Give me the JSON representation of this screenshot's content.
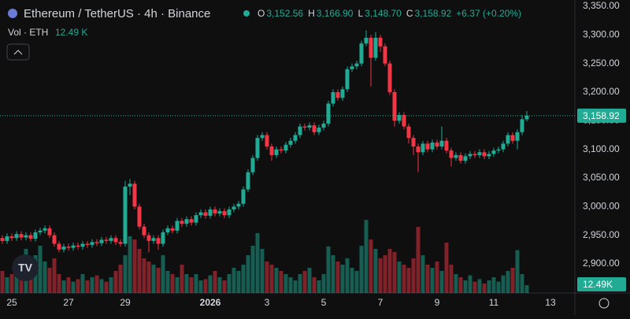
{
  "chart_data": {
    "type": "candlestick",
    "header": {
      "symbol": "Ethereum / TetherUS · 4h · Binance",
      "fields": [
        {
          "key": "O",
          "text": "3,152.56"
        },
        {
          "key": "H",
          "text": "3,166.90"
        },
        {
          "key": "L",
          "text": "3,148.70"
        },
        {
          "key": "C",
          "text": "3,158.92"
        }
      ],
      "change": "+6.37 (+0.20%)",
      "volume_title": "Vol · ETH",
      "volume_text": "12.49 K"
    },
    "last_price_label": "3,158.92",
    "last_volume_label": "12.49K",
    "up_color": "#22ab94",
    "down_color": "#f23645",
    "open": [
      2945,
      2940,
      2948,
      2945,
      2952,
      2946,
      2950,
      2944,
      2955,
      2958,
      2962,
      2950,
      2935,
      2925,
      2930,
      2928,
      2932,
      2930,
      2935,
      2933,
      2938,
      2936,
      2942,
      2940,
      2945,
      2938,
      2935,
      3035,
      3040,
      3000,
      2965,
      2950,
      2940,
      2945,
      2935,
      2955,
      2962,
      2958,
      2975,
      2970,
      2978,
      2972,
      2985,
      2990,
      2984,
      2995,
      2988,
      2992,
      2985,
      2995,
      3000,
      3005,
      3030,
      3060,
      3085,
      3120,
      3125,
      3105,
      3090,
      3100,
      3098,
      3108,
      3115,
      3125,
      3140,
      3138,
      3142,
      3130,
      3138,
      3145,
      3180,
      3200,
      3190,
      3205,
      3240,
      3245,
      3250,
      3285,
      3295,
      3260,
      3295,
      3280,
      3250,
      3200,
      3150,
      3160,
      3140,
      3120,
      3105,
      3095,
      3110,
      3100,
      3112,
      3105,
      3115,
      3098,
      3085,
      3090,
      3080,
      3088,
      3092,
      3090,
      3095,
      3088,
      3092,
      3098,
      3100,
      3110,
      3125,
      3115,
      3130,
      3152.56
    ],
    "high": [
      2950,
      2953,
      2953,
      2957,
      2957,
      2955,
      2955,
      2960,
      2963,
      2967,
      2967,
      2955,
      2940,
      2935,
      2935,
      2937,
      2937,
      2940,
      2940,
      2943,
      2943,
      2947,
      2947,
      2950,
      2950,
      2943,
      3045,
      3048,
      3045,
      3005,
      2970,
      2955,
      2950,
      2950,
      2960,
      2967,
      2967,
      2980,
      2980,
      2983,
      2983,
      2990,
      2995,
      2995,
      3000,
      3000,
      2997,
      2997,
      3000,
      3005,
      3010,
      3035,
      3065,
      3090,
      3125,
      3130,
      3130,
      3110,
      3105,
      3105,
      3113,
      3120,
      3130,
      3145,
      3145,
      3147,
      3147,
      3143,
      3150,
      3185,
      3205,
      3205,
      3210,
      3245,
      3250,
      3255,
      3290,
      3308,
      3300,
      3305,
      3300,
      3285,
      3255,
      3205,
      3165,
      3165,
      3145,
      3125,
      3110,
      3115,
      3115,
      3117,
      3117,
      3140,
      3120,
      3103,
      3095,
      3095,
      3093,
      3097,
      3097,
      3100,
      3100,
      3097,
      3103,
      3105,
      3115,
      3130,
      3130,
      3135,
      3160,
      3166.9
    ],
    "low": [
      2935,
      2935,
      2940,
      2940,
      2941,
      2941,
      2939,
      2939,
      2950,
      2953,
      2945,
      2930,
      2920,
      2920,
      2923,
      2923,
      2925,
      2925,
      2928,
      2928,
      2931,
      2931,
      2935,
      2935,
      2933,
      2930,
      2930,
      3020,
      2995,
      2960,
      2945,
      2920,
      2935,
      2925,
      2930,
      2950,
      2953,
      2953,
      2965,
      2965,
      2967,
      2967,
      2980,
      2979,
      2979,
      2983,
      2983,
      2980,
      2980,
      2990,
      2995,
      3000,
      3025,
      3055,
      3080,
      3115,
      3100,
      3080,
      3085,
      3093,
      3093,
      3103,
      3110,
      3120,
      3133,
      3133,
      3125,
      3125,
      3133,
      3140,
      3175,
      3185,
      3185,
      3200,
      3235,
      3240,
      3245,
      3280,
      3210,
      3255,
      3270,
      3245,
      3195,
      3140,
      3145,
      3135,
      3110,
      3090,
      3060,
      3090,
      3095,
      3095,
      3100,
      3100,
      3093,
      3070,
      3080,
      3075,
      3075,
      3083,
      3085,
      3085,
      3083,
      3083,
      3087,
      3093,
      3095,
      3105,
      3110,
      3100,
      3125,
      3148.7
    ],
    "close": [
      2940,
      2948,
      2945,
      2952,
      2946,
      2950,
      2944,
      2955,
      2958,
      2962,
      2950,
      2935,
      2925,
      2930,
      2928,
      2932,
      2930,
      2935,
      2933,
      2938,
      2936,
      2942,
      2940,
      2945,
      2938,
      2935,
      3035,
      3040,
      3000,
      2965,
      2950,
      2940,
      2945,
      2935,
      2955,
      2962,
      2958,
      2975,
      2970,
      2978,
      2972,
      2985,
      2990,
      2984,
      2995,
      2988,
      2992,
      2985,
      2995,
      3000,
      3005,
      3030,
      3060,
      3085,
      3120,
      3125,
      3105,
      3090,
      3100,
      3098,
      3108,
      3115,
      3125,
      3140,
      3138,
      3142,
      3130,
      3138,
      3145,
      3180,
      3200,
      3190,
      3205,
      3240,
      3245,
      3250,
      3285,
      3295,
      3260,
      3295,
      3280,
      3250,
      3200,
      3150,
      3160,
      3140,
      3120,
      3105,
      3095,
      3110,
      3100,
      3112,
      3105,
      3115,
      3098,
      3085,
      3090,
      3080,
      3088,
      3092,
      3090,
      3095,
      3088,
      3092,
      3098,
      3100,
      3110,
      3125,
      3115,
      3130,
      3152.56,
      3158.92
    ],
    "volume": [
      35,
      25,
      30,
      40,
      55,
      70,
      45,
      60,
      75,
      50,
      40,
      55,
      30,
      20,
      25,
      18,
      22,
      30,
      20,
      25,
      28,
      22,
      18,
      25,
      35,
      45,
      60,
      90,
      85,
      70,
      55,
      50,
      45,
      40,
      60,
      35,
      30,
      25,
      45,
      30,
      25,
      30,
      20,
      22,
      28,
      35,
      25,
      20,
      30,
      40,
      35,
      45,
      60,
      75,
      95,
      70,
      50,
      45,
      40,
      35,
      30,
      25,
      20,
      30,
      35,
      40,
      25,
      20,
      30,
      74,
      60,
      50,
      45,
      55,
      40,
      35,
      75,
      116,
      85,
      70,
      55,
      60,
      70,
      65,
      50,
      45,
      40,
      55,
      105,
      60,
      45,
      40,
      50,
      35,
      80,
      45,
      30,
      25,
      20,
      28,
      18,
      22,
      15,
      20,
      25,
      18,
      28,
      35,
      40,
      68,
      30,
      12.49
    ],
    "xlim": [
      -0.5,
      121.17
    ],
    "ylim": [
      2849,
      3361
    ],
    "vlim": [
      0,
      465
    ],
    "yticks": [
      {
        "value": 2900,
        "label": "2,900.00"
      },
      {
        "value": 2950,
        "label": "2,950.00"
      },
      {
        "value": 3000,
        "label": "3,000.00"
      },
      {
        "value": 3050,
        "label": "3,050.00"
      },
      {
        "value": 3100,
        "label": "3,100.00"
      },
      {
        "value": 3150,
        "label": "3,150.00"
      },
      {
        "value": 3200,
        "label": "3,200.00"
      },
      {
        "value": 3250,
        "label": "3,250.00"
      },
      {
        "value": 3300,
        "label": "3,300.00"
      },
      {
        "value": 3350,
        "label": "3,350.00"
      }
    ],
    "xticks": [
      {
        "value": 2,
        "label": "25"
      },
      {
        "value": 14,
        "label": "27"
      },
      {
        "value": 26,
        "label": "29"
      },
      {
        "value": 44,
        "label": "2026"
      },
      {
        "value": 56,
        "label": "3"
      },
      {
        "value": 68,
        "label": "5"
      },
      {
        "value": 80,
        "label": "7"
      },
      {
        "value": 92,
        "label": "9"
      },
      {
        "value": 104,
        "label": "11"
      },
      {
        "value": 116,
        "label": "13"
      }
    ]
  }
}
